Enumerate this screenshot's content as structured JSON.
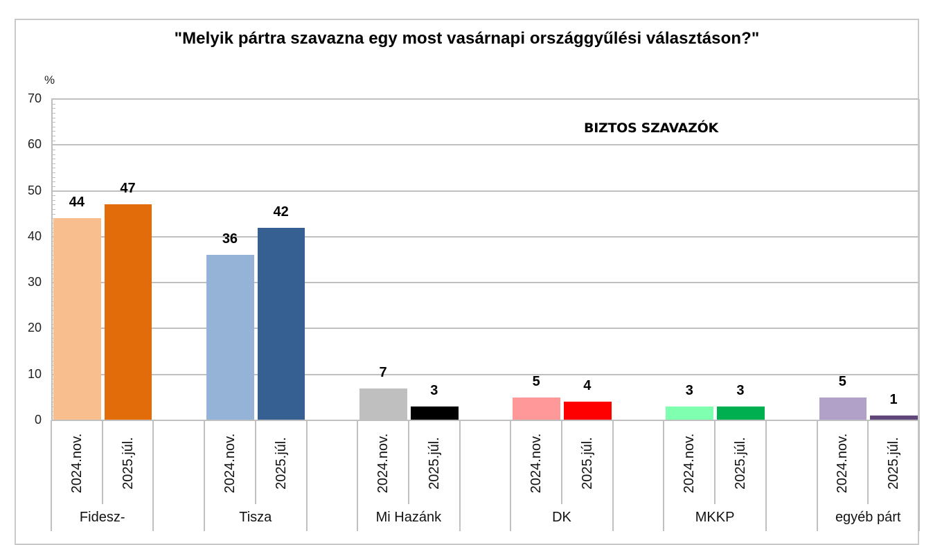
{
  "chart_data": {
    "type": "bar",
    "title": "\"Melyik pártra szavazna egy most vasárnapi országgyűlési választáson?\"",
    "subtitle": "BIZTOS SZAVAZÓK",
    "ylabel": "%",
    "xlabel": "",
    "ylim": [
      0,
      70
    ],
    "yticks": [
      0,
      10,
      20,
      30,
      40,
      50,
      60,
      70
    ],
    "grid": true,
    "legend": "none",
    "categories": [
      "Fidesz-",
      "Tisza",
      "Mi Hazánk",
      "DK",
      "MKKP",
      "egyéb párt"
    ],
    "series": [
      {
        "name": "2024.nov.",
        "values": [
          44,
          36,
          7,
          5,
          3,
          5
        ]
      },
      {
        "name": "2025.júl.",
        "values": [
          47,
          42,
          3,
          4,
          3,
          1
        ]
      }
    ],
    "bar_colors": {
      "2024.nov.": [
        "#F9BE8E",
        "#95B3D7",
        "#BFBFBF",
        "#FF9999",
        "#7FFFB0",
        "#B1A0C7"
      ],
      "2025.júl.": [
        "#E36C0A",
        "#366092",
        "#000000",
        "#FF0000",
        "#00B050",
        "#60497A"
      ]
    },
    "data_labels": [
      [
        "44",
        "47"
      ],
      [
        "36",
        "42"
      ],
      [
        "7",
        "3"
      ],
      [
        "5",
        "4"
      ],
      [
        "3",
        "3"
      ],
      [
        "5",
        "1"
      ]
    ]
  }
}
